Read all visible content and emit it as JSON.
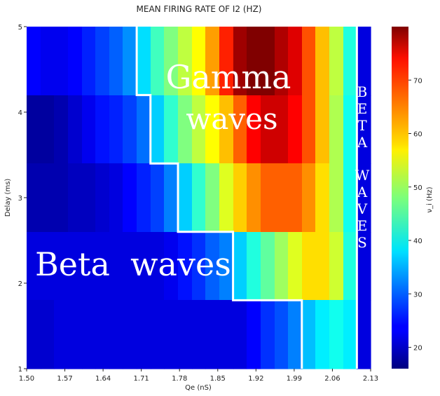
{
  "chart_data": {
    "type": "heatmap",
    "title": "MEAN FIRING RATE OF I2 (HZ)",
    "xlabel": "Qe (nS)",
    "ylabel": "Delay (ms)",
    "colorbar_label": "ν_i (Hz)",
    "colormap": "jet",
    "vmin": 16,
    "vmax": 80,
    "colorbar_ticks": [
      "20",
      "30",
      "40",
      "50",
      "60",
      "70"
    ],
    "x_ticks": [
      "1.50",
      "1.57",
      "1.64",
      "1.71",
      "1.78",
      "1.85",
      "1.92",
      "1.99",
      "2.06",
      "2.13"
    ],
    "y_ticks": [
      "1",
      "2",
      "3",
      "4",
      "5"
    ],
    "xlim": [
      1.5,
      2.13
    ],
    "ylim": [
      1,
      5
    ],
    "columns": 25,
    "row_delays": [
      "4.6",
      "3.8",
      "3.0",
      "2.2",
      "1.4"
    ],
    "values": [
      [
        24,
        23,
        23,
        24,
        26,
        28,
        30,
        33,
        38,
        44,
        48,
        52,
        56,
        62,
        70,
        78,
        80,
        80,
        77,
        74,
        67,
        60,
        52,
        42,
        22
      ],
      [
        18,
        18,
        19,
        21,
        23,
        25,
        26,
        28,
        31,
        37,
        43,
        48,
        52,
        56,
        60,
        66,
        72,
        75,
        75,
        72,
        67,
        60,
        51,
        41,
        22
      ],
      [
        19,
        19,
        19,
        20,
        20,
        21,
        22,
        24,
        26,
        28,
        32,
        37,
        43,
        48,
        54,
        59,
        63,
        66,
        66,
        66,
        63,
        58,
        51,
        41,
        22
      ],
      [
        22,
        22,
        22,
        22,
        22,
        22,
        22,
        22,
        22,
        22,
        23,
        25,
        27,
        30,
        32,
        37,
        42,
        46,
        50,
        54,
        58,
        58,
        53,
        42,
        22
      ],
      [
        21,
        21,
        22,
        22,
        22,
        22,
        22,
        22,
        22,
        22,
        22,
        22,
        22,
        22,
        22,
        22,
        24,
        27,
        29,
        32,
        36,
        39,
        41,
        39,
        22
      ]
    ],
    "annotations": [
      {
        "text": "Gamma",
        "region": "upper-center"
      },
      {
        "text": "waves",
        "region": "upper-center"
      },
      {
        "text": "Beta  waves",
        "region": "lower-left"
      },
      {
        "text": "BETA WAVES",
        "letters": [
          "B",
          "E",
          "T",
          "A",
          "W",
          "A",
          "V",
          "E",
          "S"
        ],
        "region": "right-column"
      }
    ]
  }
}
